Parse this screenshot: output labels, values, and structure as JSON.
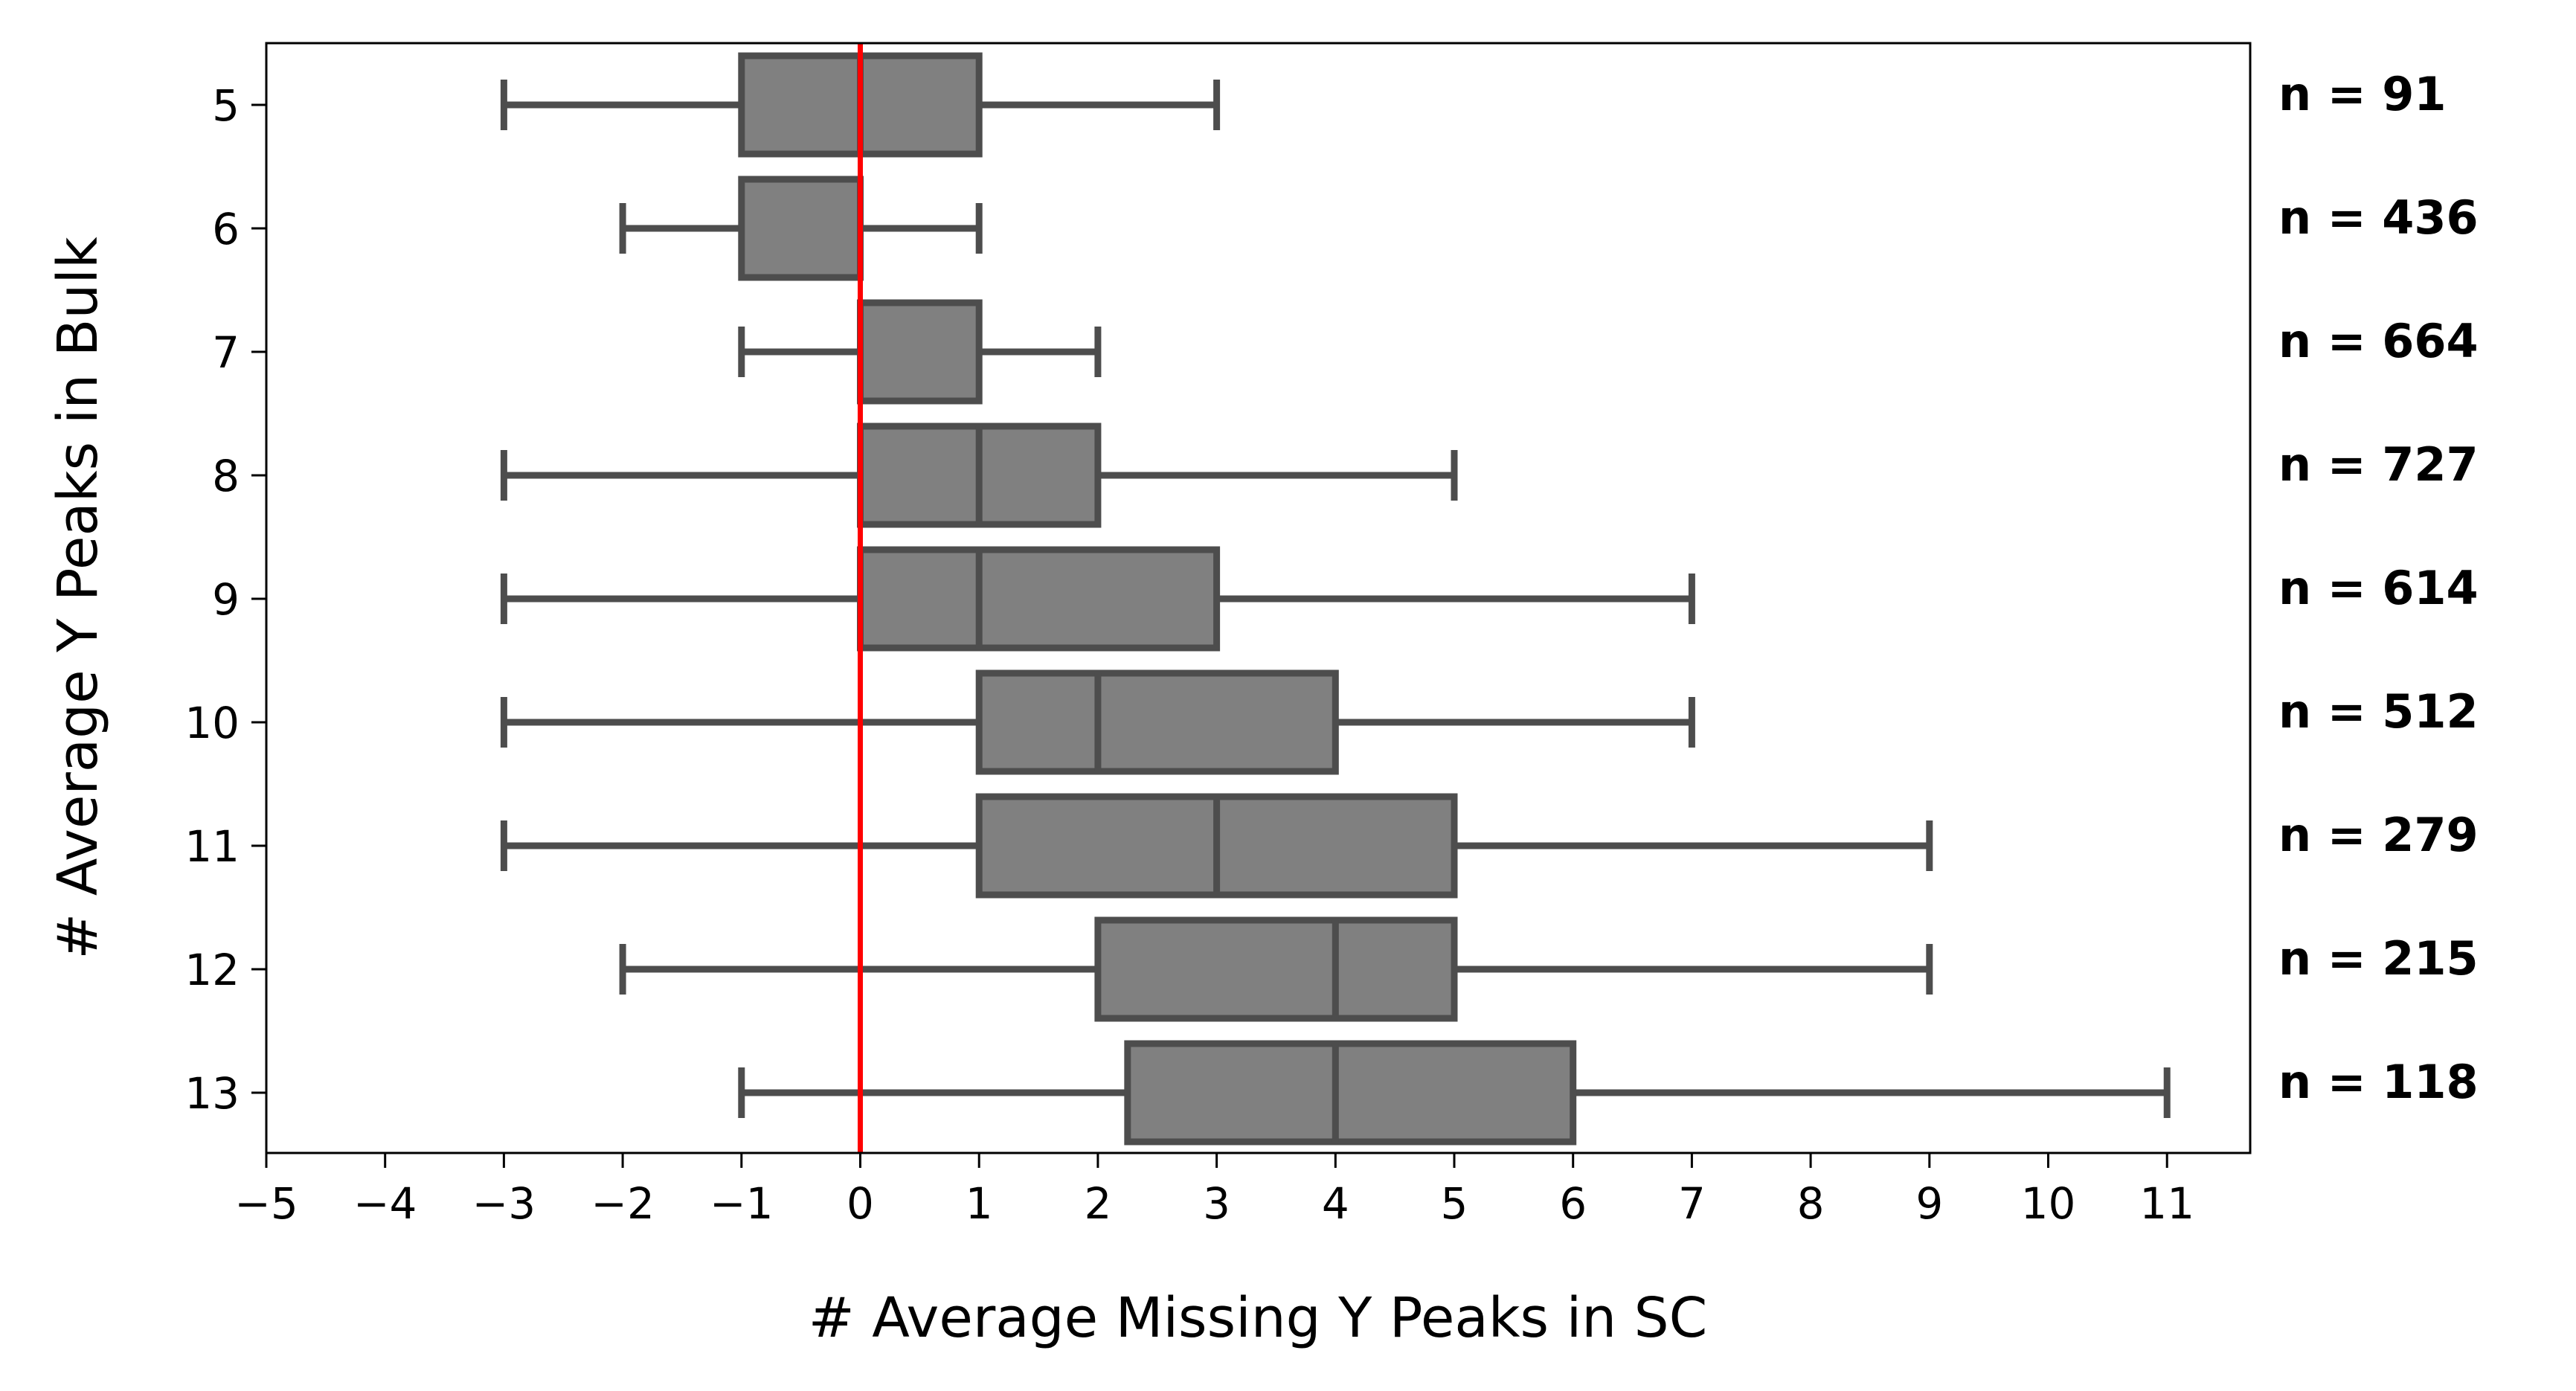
{
  "chart_data": {
    "type": "boxplot",
    "orientation": "horizontal",
    "xlabel": "# Average Missing Y Peaks in SC",
    "ylabel": "# Average Y Peaks in Bulk",
    "xlim": [
      -5,
      11.7
    ],
    "xticks": [
      -5,
      -4,
      -3,
      -2,
      -1,
      0,
      1,
      2,
      3,
      4,
      5,
      6,
      7,
      8,
      9,
      10,
      11
    ],
    "reference_line": {
      "x": 0,
      "color": "#ff0000"
    },
    "box_color": "#808080",
    "edge_color": "#4d4d4d",
    "categories": [
      "5",
      "6",
      "7",
      "8",
      "9",
      "10",
      "11",
      "12",
      "13"
    ],
    "boxes": [
      {
        "category": "5",
        "whislo": -3,
        "q1": -1,
        "med": 0,
        "q3": 1,
        "whishi": 3
      },
      {
        "category": "6",
        "whislo": -2,
        "q1": -1,
        "med": 0,
        "q3": 0,
        "whishi": 1
      },
      {
        "category": "7",
        "whislo": -1,
        "q1": 0,
        "med": 0,
        "q3": 1,
        "whishi": 2
      },
      {
        "category": "8",
        "whislo": -3,
        "q1": 0,
        "med": 1,
        "q3": 2,
        "whishi": 5
      },
      {
        "category": "9",
        "whislo": -3,
        "q1": 0,
        "med": 1,
        "q3": 3,
        "whishi": 7
      },
      {
        "category": "10",
        "whislo": -3,
        "q1": 1,
        "med": 2,
        "q3": 4,
        "whishi": 7
      },
      {
        "category": "11",
        "whislo": -3,
        "q1": 1,
        "med": 3,
        "q3": 5,
        "whishi": 9
      },
      {
        "category": "12",
        "whislo": -2,
        "q1": 2,
        "med": 4,
        "q3": 5,
        "whishi": 9
      },
      {
        "category": "13",
        "whislo": -1,
        "q1": 2.25,
        "med": 4,
        "q3": 6,
        "whishi": 11
      }
    ],
    "annotations": [
      "n = 91",
      "n = 436",
      "n = 664",
      "n = 727",
      "n = 614",
      "n = 512",
      "n = 279",
      "n = 215",
      "n = 118"
    ]
  }
}
